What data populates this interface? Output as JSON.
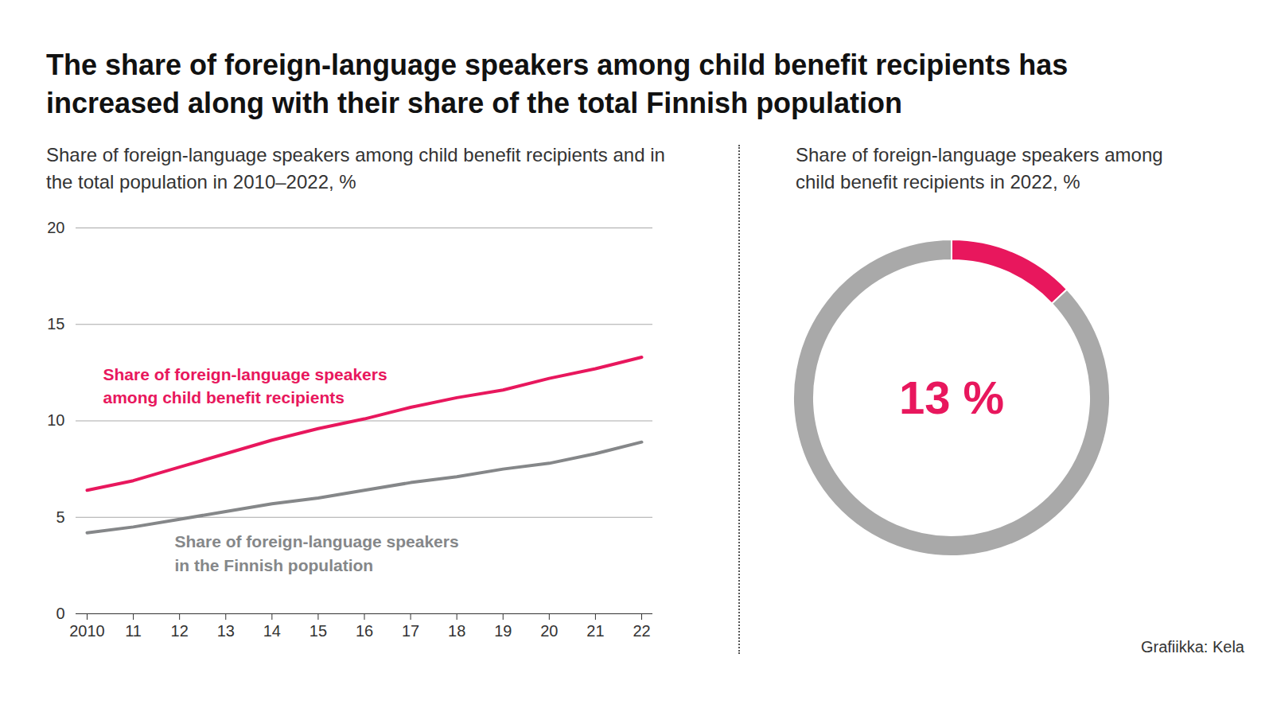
{
  "title": "The share of foreign-language speakers among child benefit recipients has increased along with their share of the total Finnish population",
  "source": "Grafiikka: Kela",
  "chart_data": [
    {
      "type": "line",
      "title": "Share of foreign-language speakers among child benefit recipients and in the total population in 2010–2022, %",
      "x": [
        2010,
        2011,
        2012,
        2013,
        2014,
        2015,
        2016,
        2017,
        2018,
        2019,
        2020,
        2021,
        2022
      ],
      "xlim": [
        2010,
        2022
      ],
      "xticks": [
        2010,
        {
          "value": 2011,
          "label": "11"
        },
        {
          "value": 2012,
          "label": "12"
        },
        {
          "value": 2013,
          "label": "13"
        },
        {
          "value": 2014,
          "label": "14"
        },
        {
          "value": 2015,
          "label": "15"
        },
        {
          "value": 2016,
          "label": "16"
        },
        {
          "value": 2017,
          "label": "17"
        },
        {
          "value": 2018,
          "label": "18"
        },
        {
          "value": 2019,
          "label": "19"
        },
        {
          "value": 2020,
          "label": "20"
        },
        {
          "value": 2021,
          "label": "21"
        },
        {
          "value": 2022,
          "label": "22"
        }
      ],
      "ylim": [
        0,
        20
      ],
      "yticks": [
        0,
        5,
        10,
        15,
        20
      ],
      "grid": true,
      "series": [
        {
          "name": "Share of foreign-language speakers\namong child benefit recipients",
          "color": "#e8175d",
          "values": [
            6.4,
            6.9,
            7.6,
            8.3,
            9.0,
            9.6,
            10.1,
            10.7,
            11.2,
            11.6,
            12.2,
            12.7,
            13.3
          ]
        },
        {
          "name": "Share of foreign-language speakers\nin the Finnish population",
          "color": "#858789",
          "values": [
            4.2,
            4.5,
            4.9,
            5.3,
            5.7,
            6.0,
            6.4,
            6.8,
            7.1,
            7.5,
            7.8,
            8.3,
            8.9
          ]
        }
      ]
    },
    {
      "type": "pie",
      "title": "Share of foreign-language speakers among child benefit recipients in 2022, %",
      "values": [
        13,
        87
      ],
      "value_labels": [
        "13 %",
        null
      ],
      "colors": [
        "#e8175d",
        "#a9a9a9"
      ]
    }
  ]
}
